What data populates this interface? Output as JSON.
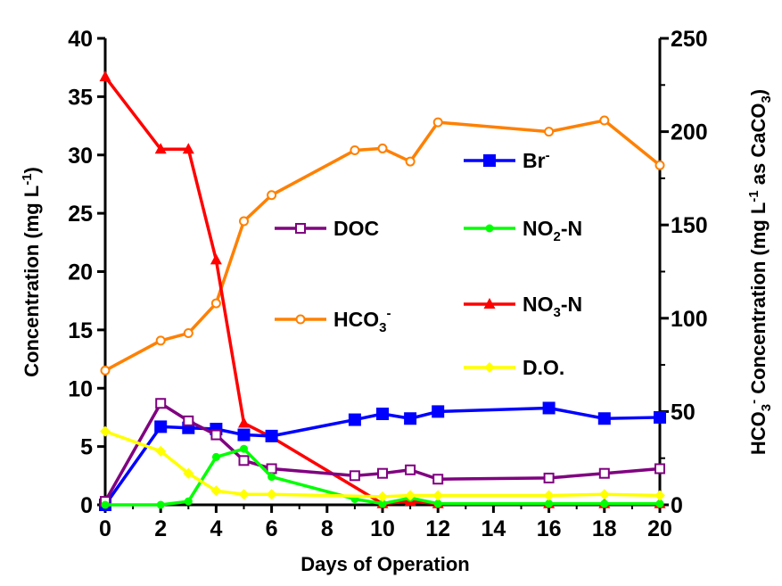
{
  "chart_data": {
    "type": "line",
    "xlabel": "Days of Operation",
    "ylabel_left": {
      "base": "Concentration (mg L",
      "sup": "-1",
      "tail": ")"
    },
    "ylabel_right": {
      "a": "HCO",
      "sub": "3",
      "sup": "-",
      "b": " Concentration (mg L",
      "sup2": "-1",
      "c": " as CaCO",
      "sub2": "3",
      "d": ")"
    },
    "xlim": [
      0,
      20
    ],
    "ylim_left": [
      0,
      40
    ],
    "ylim_right": [
      0,
      250
    ],
    "x_ticks": [
      0,
      2,
      4,
      6,
      8,
      10,
      12,
      14,
      16,
      18,
      20
    ],
    "y_left_ticks": [
      0,
      5,
      10,
      15,
      20,
      25,
      30,
      35,
      40
    ],
    "y_right_ticks": [
      0,
      50,
      100,
      150,
      200,
      250
    ],
    "series": [
      {
        "key": "hco3",
        "name_parts": [
          "HCO",
          "3",
          "-"
        ],
        "axis": "right",
        "color": "#ff8000",
        "marker": "circle-open",
        "x": [
          0,
          2,
          3,
          4,
          5,
          6,
          9,
          10,
          11,
          12,
          16,
          18,
          20
        ],
        "y": [
          72,
          88,
          92,
          108,
          152,
          166,
          190,
          191,
          184,
          205,
          200,
          206,
          182
        ]
      },
      {
        "key": "no3",
        "name_parts": [
          "NO",
          "3",
          "-N"
        ],
        "axis": "left",
        "color": "#ff0000",
        "marker": "triangle",
        "x": [
          0,
          2,
          3,
          4,
          5,
          6,
          10,
          11,
          12,
          16,
          18,
          20
        ],
        "y": [
          36.7,
          30.5,
          30.5,
          21,
          7,
          5.8,
          0.1,
          0.3,
          0.1,
          0.1,
          0.1,
          0.1
        ]
      },
      {
        "key": "br",
        "name_parts": [
          "Br",
          "",
          "-"
        ],
        "axis": "left",
        "color": "#0000ff",
        "marker": "square",
        "x": [
          0,
          2,
          3,
          4,
          5,
          6,
          9,
          10,
          11,
          12,
          16,
          18,
          20
        ],
        "y": [
          0,
          6.7,
          6.6,
          6.5,
          6.0,
          5.9,
          7.3,
          7.8,
          7.4,
          8.0,
          8.3,
          7.4,
          7.5
        ]
      },
      {
        "key": "doc",
        "name_parts": [
          "DOC",
          "",
          ""
        ],
        "axis": "left",
        "color": "#800080",
        "marker": "square-open",
        "x": [
          0,
          2,
          3,
          4,
          5,
          6,
          9,
          10,
          11,
          12,
          16,
          18,
          20
        ],
        "y": [
          0.3,
          8.7,
          7.2,
          6.0,
          3.8,
          3.1,
          2.5,
          2.7,
          3.0,
          2.2,
          2.3,
          2.7,
          3.1
        ]
      },
      {
        "key": "no2",
        "name_parts": [
          "NO",
          "2",
          "-N"
        ],
        "axis": "left",
        "color": "#00ff00",
        "marker": "circle",
        "x": [
          0,
          2,
          3,
          4,
          5,
          6,
          9,
          10,
          11,
          12,
          16,
          18,
          20
        ],
        "y": [
          0,
          0,
          0.3,
          4.1,
          4.8,
          2.4,
          0.5,
          0.1,
          0.6,
          0.1,
          0.1,
          0.1,
          0.1
        ]
      },
      {
        "key": "do",
        "name_parts": [
          "D.O.",
          "",
          ""
        ],
        "axis": "left",
        "color": "#ffff00",
        "marker": "diamond",
        "x": [
          0,
          2,
          3,
          4,
          5,
          6,
          10,
          11,
          12,
          16,
          18,
          20
        ],
        "y": [
          6.3,
          4.6,
          2.7,
          1.2,
          0.9,
          0.9,
          0.7,
          0.8,
          0.8,
          0.8,
          0.9,
          0.8
        ]
      }
    ]
  }
}
